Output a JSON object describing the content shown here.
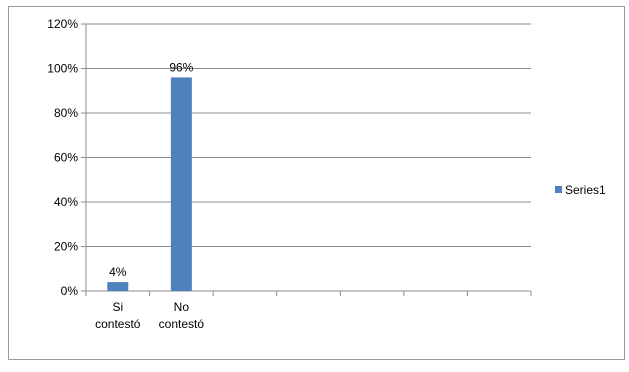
{
  "chart_data": {
    "type": "bar",
    "categories": [
      [
        "Si",
        "contestó"
      ],
      [
        "No",
        "contestó"
      ],
      [
        "",
        ""
      ],
      [
        "",
        ""
      ],
      [
        "",
        ""
      ],
      [
        "",
        ""
      ],
      [
        "",
        ""
      ]
    ],
    "series": [
      {
        "name": "Series1",
        "values": [
          4,
          96,
          null,
          null,
          null,
          null,
          null
        ],
        "data_labels": [
          "4%",
          "96%",
          "",
          "",
          "",
          "",
          ""
        ],
        "color": "#4f81bd"
      }
    ],
    "y_ticks": [
      "0%",
      "20%",
      "40%",
      "60%",
      "80%",
      "100%",
      "120%"
    ],
    "ylim": [
      0,
      120
    ],
    "y_unit": "%",
    "grid": true,
    "legend_position": "right",
    "title": "",
    "xlabel": "",
    "ylabel": ""
  }
}
